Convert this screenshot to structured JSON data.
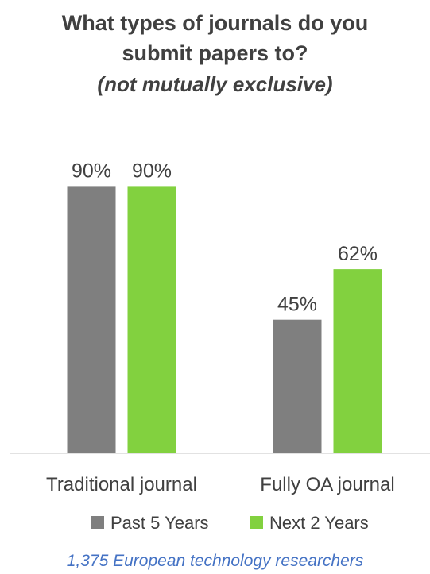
{
  "chart_data": {
    "type": "bar",
    "title": "What types of journals do you submit papers to?",
    "title_lines": [
      "What types of journals do you",
      "submit papers to?"
    ],
    "subtitle": "(not mutually exclusive)",
    "categories": [
      "Traditional journal",
      "Fully OA journal"
    ],
    "series": [
      {
        "name": "Past 5 Years",
        "values": [
          90,
          45
        ],
        "labels": [
          "90%",
          "45%"
        ],
        "color": "#7f7f7f"
      },
      {
        "name": "Next 2 Years",
        "values": [
          90,
          62
        ],
        "labels": [
          "90%",
          "62%"
        ],
        "color": "#82d13f"
      }
    ],
    "ylim": [
      0,
      100
    ],
    "grid": false,
    "legend_position": "bottom",
    "footnote": "1,375 European technology researchers"
  }
}
